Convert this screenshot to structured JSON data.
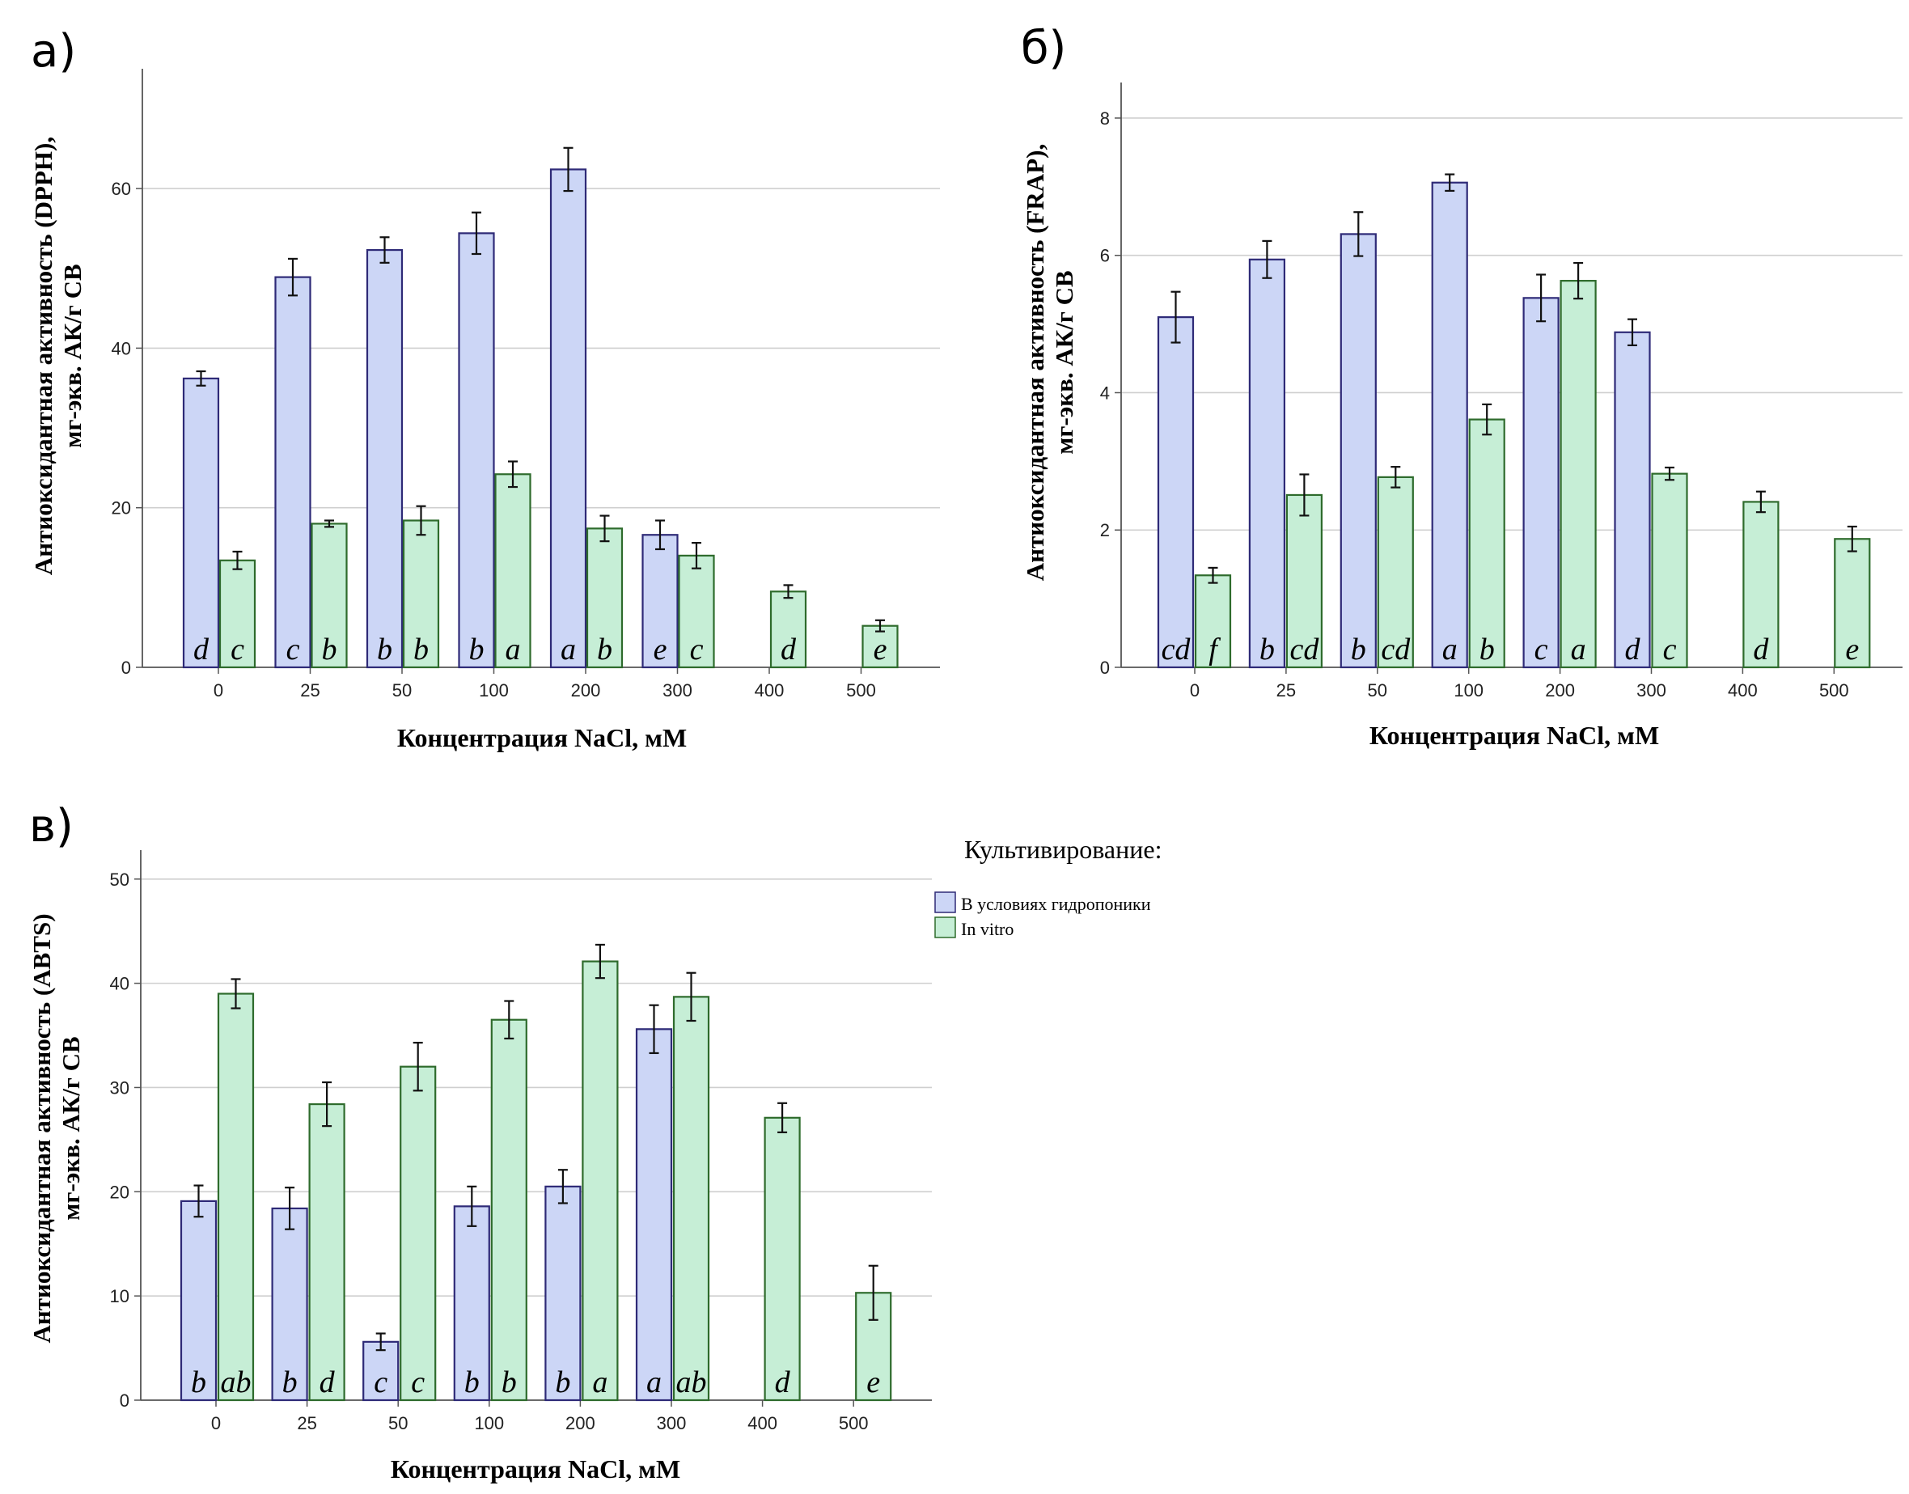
{
  "colors": {
    "hydro_fill": "#ccd6f6",
    "hydro_stroke": "#2e2a77",
    "vitro_fill": "#c6eed6",
    "vitro_stroke": "#2e6b2c",
    "grid": "#cfcfcf",
    "axis": "#555555"
  },
  "legend": {
    "title": "Культивирование:",
    "items": [
      "В условиях гидропоники",
      "In vitro"
    ]
  },
  "chart_data": [
    {
      "type": "bar",
      "panel_label": "а)",
      "ylabel_line1": "Антиоксидантная активность (DPPH),",
      "ylabel_line2": "мг-экв. АК/г СВ",
      "xlabel": "Концентрация NaCl, мМ",
      "ylim": [
        0,
        74
      ],
      "yticks": [
        0,
        20,
        40,
        60
      ],
      "categories": [
        "0",
        "25",
        "50",
        "100",
        "200",
        "300",
        "400",
        "500"
      ],
      "series": [
        {
          "name": "В условиях гидропоники",
          "values": [
            36.2,
            48.9,
            52.3,
            54.4,
            62.4,
            16.6,
            null,
            null
          ],
          "errors": [
            0.9,
            2.3,
            1.6,
            2.6,
            2.7,
            1.8,
            null,
            null
          ],
          "letters": [
            "d",
            "c",
            "b",
            "b",
            "a",
            "e",
            "",
            ""
          ]
        },
        {
          "name": "In vitro",
          "values": [
            13.4,
            18.0,
            18.4,
            24.2,
            17.4,
            14.0,
            9.5,
            5.2
          ],
          "errors": [
            1.1,
            0.4,
            1.8,
            1.6,
            1.6,
            1.6,
            0.8,
            0.7
          ],
          "letters": [
            "c",
            "b",
            "b",
            "a",
            "b",
            "c",
            "d",
            "e"
          ]
        }
      ]
    },
    {
      "type": "bar",
      "panel_label": "б)",
      "ylabel_line1": "Антиоксидантная активность (FRAP),",
      "ylabel_line2": "мг-экв. АК/г СВ",
      "xlabel": "Концентрация NaCl, мМ",
      "ylim": [
        0,
        8.4
      ],
      "yticks": [
        0,
        2,
        4,
        6,
        8
      ],
      "categories": [
        "0",
        "25",
        "50",
        "100",
        "200",
        "300",
        "400",
        "500"
      ],
      "series": [
        {
          "name": "В условиях гидропоники",
          "values": [
            5.1,
            5.94,
            6.31,
            7.06,
            5.38,
            4.88,
            null,
            null
          ],
          "errors": [
            0.37,
            0.27,
            0.32,
            0.12,
            0.34,
            0.19,
            null,
            null
          ],
          "letters": [
            "cd",
            "b",
            "b",
            "a",
            "c",
            "d",
            "",
            ""
          ]
        },
        {
          "name": "In vitro",
          "values": [
            1.34,
            2.51,
            2.77,
            3.61,
            5.63,
            2.82,
            2.41,
            1.87
          ],
          "errors": [
            0.11,
            0.3,
            0.15,
            0.22,
            0.26,
            0.09,
            0.15,
            0.18
          ],
          "letters": [
            "f",
            "cd",
            "cd",
            "b",
            "a",
            "c",
            "d",
            "e"
          ]
        }
      ]
    },
    {
      "type": "bar",
      "panel_label": "в)",
      "ylabel_line1": "Антиоксидантная активность (ABTS)",
      "ylabel_line2": "мг-экв. АК/г СВ",
      "xlabel": "Концентрация NaCl, мМ",
      "ylim": [
        0,
        52
      ],
      "yticks": [
        0,
        10,
        20,
        30,
        40,
        50
      ],
      "categories": [
        "0",
        "25",
        "50",
        "100",
        "200",
        "300",
        "400",
        "500"
      ],
      "series": [
        {
          "name": "В условиях гидропоники",
          "values": [
            19.1,
            18.4,
            5.6,
            18.6,
            20.5,
            35.6,
            null,
            null
          ],
          "errors": [
            1.5,
            2.0,
            0.8,
            1.9,
            1.6,
            2.3,
            null,
            null
          ],
          "letters": [
            "b",
            "b",
            "c",
            "b",
            "b",
            "a",
            "",
            ""
          ]
        },
        {
          "name": "In vitro",
          "values": [
            39.0,
            28.4,
            32.0,
            36.5,
            42.1,
            38.7,
            27.1,
            10.3
          ],
          "errors": [
            1.4,
            2.1,
            2.3,
            1.8,
            1.6,
            2.3,
            1.4,
            2.6
          ],
          "letters": [
            "ab",
            "d",
            "c",
            "b",
            "a",
            "ab",
            "d",
            "e"
          ]
        }
      ]
    }
  ]
}
